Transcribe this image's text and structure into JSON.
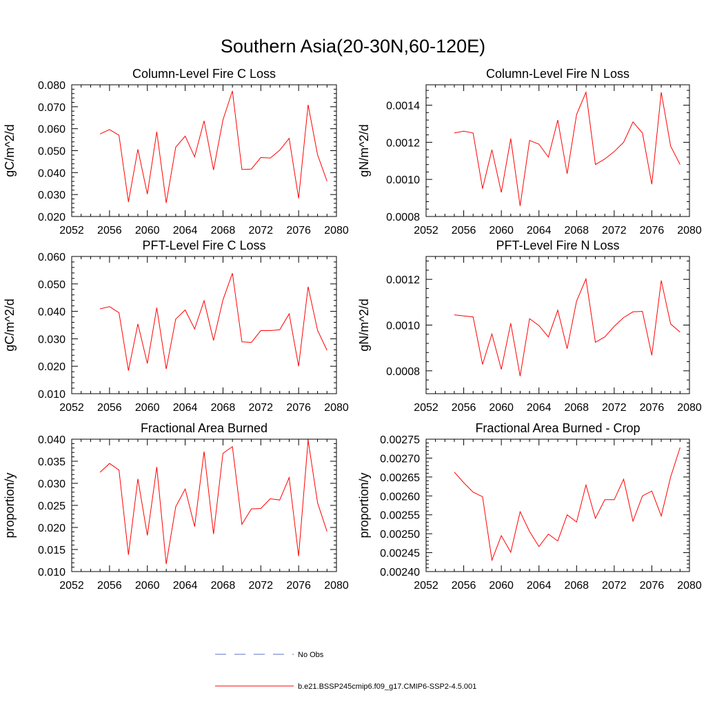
{
  "figure": {
    "title": "Southern Asia(20-30N,60-120E)"
  },
  "legend": [
    {
      "label": "No Obs",
      "color": "#5a6fc8",
      "dash": true
    },
    {
      "label": "b.e21.BSSP245cmip6.f09_g17.CMIP6-SSP2-4.5.001",
      "color": "#ff0000",
      "dash": false
    }
  ],
  "chart_data": [
    {
      "type": "line",
      "title": "Column-Level Fire C Loss",
      "ylabel": "gC/m^2/d",
      "xlim": [
        2052,
        2080
      ],
      "ylim": [
        0.02,
        0.08
      ],
      "x_ticks": [
        "2052",
        "2056",
        "2060",
        "2064",
        "2068",
        "2072",
        "2076",
        "2080"
      ],
      "y_ticks": [
        "0.020",
        "0.030",
        "0.040",
        "0.050",
        "0.060",
        "0.070",
        "0.080"
      ],
      "series": [
        {
          "color": "#ff0000",
          "x": [
            2055,
            2056,
            2057,
            2058,
            2059,
            2060,
            2061,
            2062,
            2063,
            2064,
            2065,
            2066,
            2067,
            2068,
            2069,
            2070,
            2071,
            2072,
            2073,
            2074,
            2075,
            2076,
            2077,
            2078,
            2079
          ],
          "values": [
            0.0576,
            0.0596,
            0.057,
            0.0266,
            0.0506,
            0.0302,
            0.0586,
            0.0262,
            0.0516,
            0.0566,
            0.0472,
            0.0636,
            0.0412,
            0.064,
            0.0772,
            0.0414,
            0.0416,
            0.0469,
            0.0466,
            0.0502,
            0.0556,
            0.0283,
            0.0709,
            0.0481,
            0.0361
          ]
        }
      ]
    },
    {
      "type": "line",
      "title": "Column-Level Fire N Loss",
      "ylabel": "gN/m^2/d",
      "xlim": [
        2052,
        2080
      ],
      "ylim": [
        0.0008,
        0.00151
      ],
      "x_ticks": [
        "2052",
        "2056",
        "2060",
        "2064",
        "2068",
        "2072",
        "2076",
        "2080"
      ],
      "y_ticks": [
        "0.0008",
        "0.0010",
        "0.0012",
        "0.0014"
      ],
      "series": [
        {
          "color": "#ff0000",
          "x": [
            2055,
            2056,
            2057,
            2058,
            2059,
            2060,
            2061,
            2062,
            2063,
            2064,
            2065,
            2066,
            2067,
            2068,
            2069,
            2070,
            2071,
            2072,
            2073,
            2074,
            2075,
            2076,
            2077,
            2078,
            2079
          ],
          "values": [
            0.00125,
            0.00126,
            0.00125,
            0.00095,
            0.00116,
            0.00093,
            0.00122,
            0.000857,
            0.00121,
            0.00119,
            0.00112,
            0.00132,
            0.00103,
            0.00135,
            0.00147,
            0.00108,
            0.00111,
            0.00115,
            0.0012,
            0.00131,
            0.00125,
            0.000974,
            0.00147,
            0.00118,
            0.00108
          ]
        }
      ]
    },
    {
      "type": "line",
      "title": "PFT-Level Fire C Loss",
      "ylabel": "gC/m^2/d",
      "xlim": [
        2052,
        2080
      ],
      "ylim": [
        0.01,
        0.06
      ],
      "x_ticks": [
        "2052",
        "2056",
        "2060",
        "2064",
        "2068",
        "2072",
        "2076",
        "2080"
      ],
      "y_ticks": [
        "0.010",
        "0.020",
        "0.030",
        "0.040",
        "0.050",
        "0.060"
      ],
      "series": [
        {
          "color": "#ff0000",
          "x": [
            2055,
            2056,
            2057,
            2058,
            2059,
            2060,
            2061,
            2062,
            2063,
            2064,
            2065,
            2066,
            2067,
            2068,
            2069,
            2070,
            2071,
            2072,
            2073,
            2074,
            2075,
            2076,
            2077,
            2078,
            2079
          ],
          "values": [
            0.0409,
            0.0417,
            0.0395,
            0.0184,
            0.0354,
            0.021,
            0.0413,
            0.019,
            0.0372,
            0.0405,
            0.0336,
            0.0439,
            0.0294,
            0.0442,
            0.0539,
            0.0289,
            0.0287,
            0.033,
            0.033,
            0.0333,
            0.0391,
            0.02,
            0.049,
            0.0331,
            0.0258
          ]
        }
      ]
    },
    {
      "type": "line",
      "title": "PFT-Level Fire N Loss",
      "ylabel": "gN/m^2/d",
      "xlim": [
        2052,
        2080
      ],
      "ylim": [
        0.0007,
        0.0013
      ],
      "x_ticks": [
        "2052",
        "2056",
        "2060",
        "2064",
        "2068",
        "2072",
        "2076",
        "2080"
      ],
      "y_ticks": [
        "0.0008",
        "0.0010",
        "0.0012"
      ],
      "series": [
        {
          "color": "#ff0000",
          "x": [
            2055,
            2056,
            2057,
            2058,
            2059,
            2060,
            2061,
            2062,
            2063,
            2064,
            2065,
            2066,
            2067,
            2068,
            2069,
            2070,
            2071,
            2072,
            2073,
            2074,
            2075,
            2076,
            2077,
            2078,
            2079
          ],
          "values": [
            0.001045,
            0.00104,
            0.001036,
            0.000828,
            0.000961,
            0.000806,
            0.001008,
            0.000777,
            0.001028,
            0.000998,
            0.000948,
            0.001065,
            0.000897,
            0.001105,
            0.001202,
            0.000925,
            0.000948,
            0.000995,
            0.001033,
            0.001058,
            0.00106,
            0.000868,
            0.001195,
            0.001005,
            0.000969
          ]
        }
      ]
    },
    {
      "type": "line",
      "title": "Fractional Area Burned",
      "ylabel": "proportion/y",
      "xlim": [
        2052,
        2080
      ],
      "ylim": [
        0.01,
        0.04
      ],
      "x_ticks": [
        "2052",
        "2056",
        "2060",
        "2064",
        "2068",
        "2072",
        "2076",
        "2080"
      ],
      "y_ticks": [
        "0.010",
        "0.015",
        "0.020",
        "0.025",
        "0.030",
        "0.035",
        "0.040"
      ],
      "series": [
        {
          "color": "#ff0000",
          "x": [
            2055,
            2056,
            2057,
            2058,
            2059,
            2060,
            2061,
            2062,
            2063,
            2064,
            2065,
            2066,
            2067,
            2068,
            2069,
            2070,
            2071,
            2072,
            2073,
            2074,
            2075,
            2076,
            2077,
            2078,
            2079
          ],
          "values": [
            0.0325,
            0.0345,
            0.033,
            0.0138,
            0.031,
            0.0182,
            0.0337,
            0.0117,
            0.0247,
            0.0287,
            0.0202,
            0.0372,
            0.0185,
            0.0368,
            0.0383,
            0.0207,
            0.0242,
            0.0243,
            0.0265,
            0.0262,
            0.0313,
            0.0135,
            0.0398,
            0.0256,
            0.0191
          ]
        }
      ]
    },
    {
      "type": "line",
      "title": "Fractional Area Burned - Crop",
      "ylabel": "proportion/y",
      "xlim": [
        2052,
        2080
      ],
      "ylim": [
        0.0024,
        0.00275
      ],
      "x_ticks": [
        "2052",
        "2056",
        "2060",
        "2064",
        "2068",
        "2072",
        "2076",
        "2080"
      ],
      "y_ticks": [
        "0.00240",
        "0.00245",
        "0.00250",
        "0.00255",
        "0.00260",
        "0.00265",
        "0.00270",
        "0.00275"
      ],
      "series": [
        {
          "color": "#ff0000",
          "x": [
            2055,
            2056,
            2057,
            2058,
            2059,
            2060,
            2061,
            2062,
            2063,
            2064,
            2065,
            2066,
            2067,
            2068,
            2069,
            2070,
            2071,
            2072,
            2073,
            2074,
            2075,
            2076,
            2077,
            2078,
            2079
          ],
          "values": [
            0.002663,
            0.002635,
            0.00261,
            0.002598,
            0.00243,
            0.002495,
            0.002451,
            0.002558,
            0.002506,
            0.002466,
            0.002499,
            0.002481,
            0.00255,
            0.002531,
            0.002629,
            0.002541,
            0.00259,
            0.00259,
            0.002644,
            0.002533,
            0.0026,
            0.002613,
            0.002547,
            0.00265,
            0.002728
          ]
        }
      ]
    }
  ]
}
